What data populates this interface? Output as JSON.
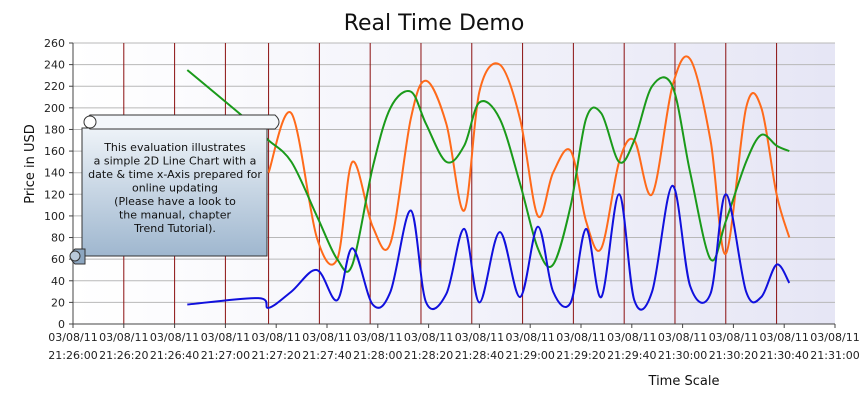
{
  "chart_data": {
    "type": "line",
    "title": "Real Time Demo",
    "xlabel": "Time Scale",
    "ylabel": "Price in USD",
    "ylim": [
      0,
      260
    ],
    "y_ticks": [
      0,
      20,
      40,
      60,
      80,
      100,
      120,
      140,
      160,
      180,
      200,
      220,
      240,
      260
    ],
    "x_ticks": [
      {
        "date": "03/08/11",
        "time": "21:26:00"
      },
      {
        "date": "03/08/11",
        "time": "21:26:20"
      },
      {
        "date": "03/08/11",
        "time": "21:26:40"
      },
      {
        "date": "03/08/11",
        "time": "21:27:00"
      },
      {
        "date": "03/08/11",
        "time": "21:27:20"
      },
      {
        "date": "03/08/11",
        "time": "21:27:40"
      },
      {
        "date": "03/08/11",
        "time": "21:28:00"
      },
      {
        "date": "03/08/11",
        "time": "21:28:20"
      },
      {
        "date": "03/08/11",
        "time": "21:28:40"
      },
      {
        "date": "03/08/11",
        "time": "21:29:00"
      },
      {
        "date": "03/08/11",
        "time": "21:29:20"
      },
      {
        "date": "03/08/11",
        "time": "21:29:40"
      },
      {
        "date": "03/08/11",
        "time": "21:30:00"
      },
      {
        "date": "03/08/11",
        "time": "21:30:20"
      },
      {
        "date": "03/08/11",
        "time": "21:30:40"
      },
      {
        "date": "03/08/11",
        "time": "21:31:00"
      }
    ],
    "x_times": [
      "21:26:45",
      "21:27:13",
      "21:27:17",
      "21:27:26",
      "21:27:36",
      "21:27:44",
      "21:27:50",
      "21:27:58",
      "21:28:05",
      "21:28:13",
      "21:28:19",
      "21:28:27",
      "21:28:34",
      "21:28:40",
      "21:28:48",
      "21:28:56",
      "21:29:03",
      "21:29:09",
      "21:29:16",
      "21:29:22",
      "21:29:28",
      "21:29:35",
      "21:29:41",
      "21:29:48",
      "21:29:56",
      "21:30:03",
      "21:30:11",
      "21:30:17",
      "21:30:25",
      "21:30:31",
      "21:30:37",
      "21:30:42"
    ],
    "vertical_gridlines": [
      "21:26:20",
      "21:26:40",
      "21:27:00",
      "21:27:17",
      "21:27:37",
      "21:27:57",
      "21:28:17",
      "21:28:37",
      "21:28:57",
      "21:29:17",
      "21:29:37",
      "21:29:57",
      "21:30:17",
      "21:30:37"
    ],
    "grid": true,
    "series": [
      {
        "color": "#ff6a1a",
        "values": [
          null,
          null,
          140,
          195,
          80,
          60,
          150,
          90,
          75,
          190,
          225,
          185,
          105,
          215,
          240,
          190,
          100,
          140,
          160,
          95,
          70,
          150,
          170,
          120,
          220,
          245,
          170,
          65,
          200,
          200,
          120,
          80
        ]
      },
      {
        "color": "#1a9a1a",
        "values": [
          235,
          180,
          170,
          150,
          100,
          60,
          55,
          145,
          200,
          215,
          185,
          150,
          165,
          205,
          190,
          130,
          70,
          55,
          110,
          190,
          195,
          150,
          170,
          220,
          220,
          140,
          60,
          95,
          150,
          175,
          165,
          160
        ]
      },
      {
        "color": "#1010dd",
        "values": [
          18,
          24,
          15,
          30,
          50,
          22,
          70,
          18,
          30,
          105,
          20,
          28,
          88,
          20,
          85,
          25,
          90,
          30,
          20,
          88,
          25,
          120,
          22,
          30,
          128,
          35,
          28,
          120,
          30,
          25,
          55,
          38
        ]
      }
    ],
    "annotation": "This evaluation illustrates\na simple 2D Line Chart with a\ndate & time x-Axis prepared for\nonline updating\n(Please have a look to\nthe manual, chapter\nTrend Tutorial)."
  }
}
